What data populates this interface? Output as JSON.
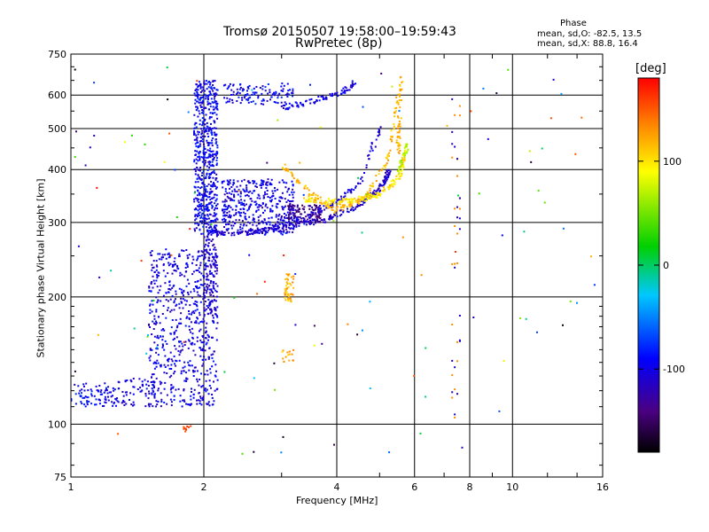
{
  "header": {
    "title_line1": "Tromsø 20150507 19:58:00–19:59:43",
    "title_line2": "RwPretec (8p)",
    "phase_heading": "Phase",
    "phase_o": "mean, sd,O: -82.5, 13.5",
    "phase_x": "mean, sd,X:  88.8, 16.4"
  },
  "colorbar": {
    "unit": "[deg]",
    "ticks": [
      "100",
      "0",
      "-100"
    ],
    "tick_values": [
      100,
      0,
      -100
    ],
    "range": [
      -180,
      180
    ]
  },
  "chart_data": {
    "type": "scatter",
    "title": "Tromsø 20150507 19:58:00–19:59:43",
    "subtitle": "RwPretec (8p)",
    "xlabel": "Frequency [MHz]",
    "ylabel": "Stationary phase Virtual Height [km]",
    "xscale": "log",
    "yscale": "log",
    "xlim": [
      1,
      16
    ],
    "ylim": [
      75,
      750
    ],
    "xticks": [
      1,
      2,
      4,
      6,
      8,
      10,
      16
    ],
    "xtick_labels": [
      "1",
      "2",
      "4",
      "6",
      "8",
      "10",
      "16"
    ],
    "yticks": [
      75,
      100,
      200,
      300,
      400,
      500,
      600,
      750
    ],
    "ytick_labels": [
      "75",
      "100",
      "200",
      "300",
      "400",
      "500",
      "600",
      "750"
    ],
    "grid": true,
    "color_scale": "phase (deg), -180 to 180, black-purple-blue-cyan-green-yellow-red",
    "clusters": [
      {
        "shape": "cloud",
        "f": [
          1.0,
          1.25
        ],
        "h": [
          110,
          125
        ],
        "phase": -95,
        "n": 80
      },
      {
        "shape": "cloud",
        "f": [
          1.25,
          1.55
        ],
        "h": [
          110,
          130
        ],
        "phase": -100,
        "n": 70
      },
      {
        "shape": "cloud",
        "f": [
          1.5,
          2.15
        ],
        "h": [
          110,
          260
        ],
        "phase": -100,
        "n": 650
      },
      {
        "shape": "cloud",
        "f": [
          1.9,
          2.15
        ],
        "h": [
          280,
          650
        ],
        "phase": -95,
        "n": 600
      },
      {
        "shape": "cloud",
        "f": [
          2.0,
          2.15
        ],
        "h": [
          180,
          280
        ],
        "phase": -110,
        "n": 120
      },
      {
        "shape": "cloud",
        "f": [
          2.2,
          3.2
        ],
        "h": [
          280,
          380
        ],
        "phase": -100,
        "n": 420
      },
      {
        "shape": "cloud",
        "f": [
          3.1,
          3.7
        ],
        "h": [
          300,
          330
        ],
        "phase": -135,
        "n": 120
      },
      {
        "shape": "cloud",
        "f": [
          2.2,
          3.2
        ],
        "h": [
          570,
          640
        ],
        "phase": -95,
        "n": 120
      },
      {
        "shape": "cloud",
        "f": [
          3.05,
          3.2
        ],
        "h": [
          195,
          230
        ],
        "phase": 120,
        "n": 45
      },
      {
        "shape": "cloud",
        "f": [
          3.0,
          3.2
        ],
        "h": [
          140,
          150
        ],
        "phase": 120,
        "n": 15
      },
      {
        "shape": "cloud",
        "f": [
          1.8,
          1.9
        ],
        "h": [
          96,
          99
        ],
        "phase": 150,
        "n": 10
      }
    ],
    "traces": [
      {
        "name": "O-trace lower",
        "f": [
          2.1,
          2.4,
          3.0,
          3.8,
          4.5,
          5.0,
          5.3
        ],
        "h": [
          285,
          282,
          290,
          305,
          330,
          360,
          400
        ],
        "phase": -110,
        "n": 240
      },
      {
        "name": "O-trace upper",
        "f": [
          2.8,
          3.3,
          4.0,
          4.5,
          5.0
        ],
        "h": [
          290,
          305,
          335,
          370,
          500
        ],
        "phase": -105,
        "n": 120
      },
      {
        "name": "O-trace top",
        "f": [
          3.0,
          3.5,
          4.0,
          4.4
        ],
        "h": [
          560,
          580,
          600,
          640
        ],
        "phase": -100,
        "n": 80
      },
      {
        "name": "X-trace lower",
        "f": [
          3.4,
          4.0,
          4.5,
          5.0,
          5.5,
          5.7
        ],
        "h": [
          340,
          335,
          340,
          350,
          380,
          430
        ],
        "phase": 100,
        "n": 180
      },
      {
        "name": "X-trace upper",
        "f": [
          3.0,
          3.5,
          4.0,
          4.6,
          5.2,
          5.6
        ],
        "h": [
          410,
          350,
          320,
          340,
          420,
          640
        ],
        "phase": 115,
        "n": 160
      },
      {
        "name": "X-trace top",
        "f": [
          5.5,
          5.6
        ],
        "h": [
          430,
          660
        ],
        "phase": 120,
        "n": 40
      },
      {
        "name": "X-trace green",
        "f": [
          5.5,
          5.8
        ],
        "h": [
          390,
          460
        ],
        "phase": 70,
        "n": 30
      }
    ]
  }
}
